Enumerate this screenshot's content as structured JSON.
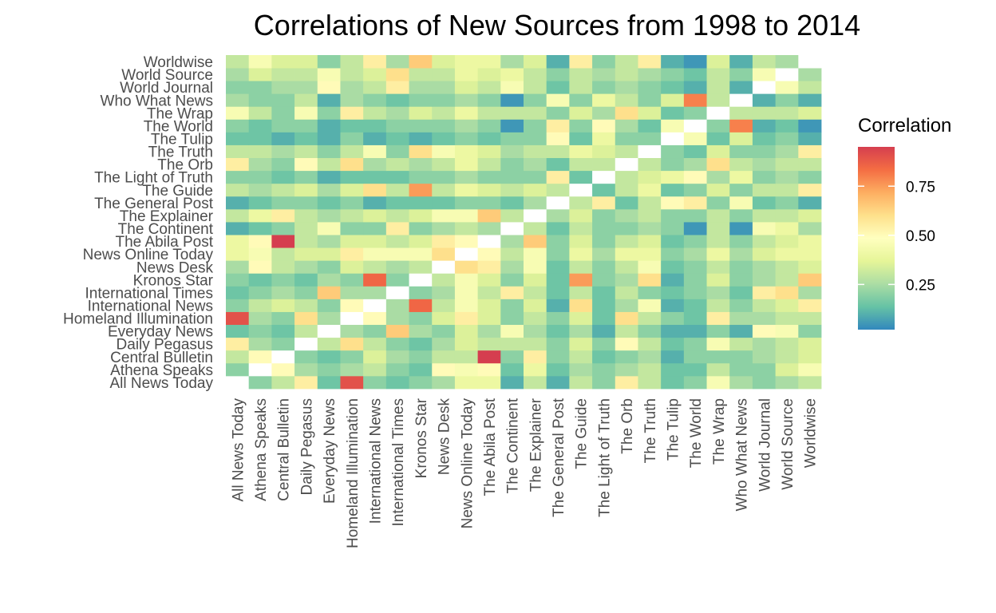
{
  "chart_data": {
    "type": "heatmap",
    "title": "Correlations of New Sources from 1998 to 2014",
    "xlabel": "",
    "ylabel": "",
    "categories": [
      "All News Today",
      "Athena Speaks",
      "Central Bulletin",
      "Daily Pegasus",
      "Everyday News",
      "Homeland Illumination",
      "International News",
      "International Times",
      "Kronos Star",
      "News Desk",
      "News Online Today",
      "The Abila Post",
      "The Continent",
      "The Explainer",
      "The General Post",
      "The Guide",
      "The Light of Truth",
      "The Orb",
      "The Truth",
      "The Tulip",
      "The World",
      "The Wrap",
      "Who What News",
      "World Journal",
      "World Source",
      "Worldwise"
    ],
    "values": [
      [
        1.0,
        0.2,
        0.3,
        0.55,
        0.15,
        0.9,
        0.2,
        0.15,
        0.2,
        0.25,
        0.4,
        0.4,
        0.1,
        0.3,
        0.1,
        0.3,
        0.2,
        0.55,
        0.3,
        0.15,
        0.2,
        0.45,
        0.25,
        0.2,
        0.25,
        0.3
      ],
      [
        0.2,
        1.0,
        0.5,
        0.25,
        0.2,
        0.25,
        0.3,
        0.2,
        0.15,
        0.5,
        0.45,
        0.5,
        0.15,
        0.4,
        0.15,
        0.25,
        0.2,
        0.25,
        0.3,
        0.15,
        0.15,
        0.3,
        0.2,
        0.2,
        0.35,
        0.45
      ],
      [
        0.3,
        0.5,
        1.0,
        0.2,
        0.15,
        0.2,
        0.35,
        0.25,
        0.2,
        0.3,
        0.3,
        0.95,
        0.2,
        0.55,
        0.2,
        0.3,
        0.15,
        0.2,
        0.25,
        0.1,
        0.2,
        0.2,
        0.2,
        0.25,
        0.3,
        0.35
      ],
      [
        0.55,
        0.25,
        0.2,
        1.0,
        0.3,
        0.6,
        0.3,
        0.2,
        0.15,
        0.25,
        0.35,
        0.3,
        0.3,
        0.3,
        0.2,
        0.35,
        0.2,
        0.5,
        0.3,
        0.15,
        0.2,
        0.45,
        0.3,
        0.25,
        0.3,
        0.35
      ],
      [
        0.15,
        0.2,
        0.15,
        0.3,
        1.0,
        0.25,
        0.2,
        0.65,
        0.25,
        0.2,
        0.35,
        0.25,
        0.45,
        0.25,
        0.15,
        0.25,
        0.1,
        0.3,
        0.2,
        0.1,
        0.1,
        0.2,
        0.1,
        0.5,
        0.45,
        0.2
      ],
      [
        0.9,
        0.25,
        0.2,
        0.6,
        0.25,
        1.0,
        0.5,
        0.25,
        0.2,
        0.35,
        0.55,
        0.35,
        0.2,
        0.3,
        0.2,
        0.35,
        0.15,
        0.6,
        0.3,
        0.2,
        0.15,
        0.55,
        0.25,
        0.25,
        0.3,
        0.3
      ],
      [
        0.2,
        0.3,
        0.35,
        0.3,
        0.2,
        0.5,
        1.0,
        0.25,
        0.85,
        0.3,
        0.45,
        0.35,
        0.2,
        0.35,
        0.1,
        0.6,
        0.15,
        0.25,
        0.45,
        0.1,
        0.15,
        0.3,
        0.2,
        0.3,
        0.35,
        0.55
      ],
      [
        0.15,
        0.2,
        0.25,
        0.2,
        0.65,
        0.25,
        0.25,
        1.0,
        0.2,
        0.25,
        0.45,
        0.3,
        0.55,
        0.3,
        0.15,
        0.3,
        0.15,
        0.3,
        0.2,
        0.15,
        0.2,
        0.25,
        0.15,
        0.55,
        0.6,
        0.25
      ],
      [
        0.2,
        0.15,
        0.2,
        0.15,
        0.25,
        0.2,
        0.85,
        0.2,
        1.0,
        0.3,
        0.45,
        0.35,
        0.2,
        0.35,
        0.15,
        0.75,
        0.2,
        0.25,
        0.6,
        0.1,
        0.2,
        0.35,
        0.2,
        0.25,
        0.3,
        0.65
      ],
      [
        0.25,
        0.5,
        0.3,
        0.25,
        0.2,
        0.35,
        0.3,
        0.25,
        0.3,
        1.0,
        0.6,
        0.55,
        0.25,
        0.45,
        0.15,
        0.3,
        0.2,
        0.3,
        0.45,
        0.15,
        0.2,
        0.3,
        0.2,
        0.25,
        0.3,
        0.35
      ],
      [
        0.4,
        0.45,
        0.3,
        0.35,
        0.35,
        0.55,
        0.45,
        0.45,
        0.45,
        0.6,
        1.0,
        0.5,
        0.3,
        0.45,
        0.2,
        0.4,
        0.25,
        0.4,
        0.4,
        0.2,
        0.25,
        0.4,
        0.25,
        0.35,
        0.4,
        0.4
      ],
      [
        0.4,
        0.5,
        0.95,
        0.3,
        0.25,
        0.35,
        0.35,
        0.3,
        0.35,
        0.55,
        0.5,
        1.0,
        0.25,
        0.65,
        0.2,
        0.35,
        0.2,
        0.3,
        0.35,
        0.15,
        0.2,
        0.3,
        0.2,
        0.3,
        0.35,
        0.4
      ],
      [
        0.1,
        0.15,
        0.2,
        0.3,
        0.45,
        0.2,
        0.2,
        0.55,
        0.2,
        0.25,
        0.3,
        0.25,
        1.0,
        0.3,
        0.15,
        0.3,
        0.2,
        0.2,
        0.25,
        0.2,
        0.05,
        0.3,
        0.05,
        0.45,
        0.4,
        0.25
      ],
      [
        0.3,
        0.4,
        0.55,
        0.3,
        0.25,
        0.3,
        0.35,
        0.3,
        0.35,
        0.45,
        0.45,
        0.65,
        0.3,
        1.0,
        0.25,
        0.35,
        0.2,
        0.25,
        0.3,
        0.2,
        0.2,
        0.3,
        0.2,
        0.3,
        0.3,
        0.35
      ],
      [
        0.1,
        0.15,
        0.2,
        0.2,
        0.15,
        0.2,
        0.1,
        0.15,
        0.15,
        0.15,
        0.2,
        0.2,
        0.15,
        0.25,
        1.0,
        0.3,
        0.55,
        0.15,
        0.3,
        0.5,
        0.55,
        0.2,
        0.45,
        0.15,
        0.2,
        0.1
      ],
      [
        0.3,
        0.25,
        0.3,
        0.35,
        0.25,
        0.35,
        0.6,
        0.3,
        0.75,
        0.3,
        0.4,
        0.35,
        0.3,
        0.35,
        0.3,
        1.0,
        0.15,
        0.3,
        0.4,
        0.15,
        0.2,
        0.35,
        0.2,
        0.3,
        0.3,
        0.55
      ],
      [
        0.2,
        0.2,
        0.15,
        0.2,
        0.1,
        0.15,
        0.15,
        0.15,
        0.2,
        0.2,
        0.25,
        0.2,
        0.2,
        0.2,
        0.55,
        0.15,
        1.0,
        0.3,
        0.35,
        0.4,
        0.5,
        0.25,
        0.4,
        0.2,
        0.25,
        0.2
      ],
      [
        0.55,
        0.25,
        0.2,
        0.5,
        0.3,
        0.6,
        0.25,
        0.3,
        0.25,
        0.3,
        0.4,
        0.3,
        0.2,
        0.25,
        0.15,
        0.3,
        0.3,
        1.0,
        0.3,
        0.2,
        0.25,
        0.6,
        0.3,
        0.25,
        0.3,
        0.3
      ],
      [
        0.3,
        0.3,
        0.25,
        0.3,
        0.2,
        0.3,
        0.45,
        0.2,
        0.6,
        0.45,
        0.4,
        0.35,
        0.25,
        0.3,
        0.3,
        0.4,
        0.35,
        0.3,
        1.0,
        0.2,
        0.15,
        0.35,
        0.2,
        0.2,
        0.25,
        0.55
      ],
      [
        0.15,
        0.15,
        0.1,
        0.15,
        0.1,
        0.2,
        0.1,
        0.15,
        0.1,
        0.15,
        0.2,
        0.15,
        0.2,
        0.2,
        0.5,
        0.15,
        0.4,
        0.2,
        0.2,
        1.0,
        0.45,
        0.15,
        0.35,
        0.15,
        0.2,
        0.1
      ],
      [
        0.2,
        0.15,
        0.2,
        0.2,
        0.1,
        0.15,
        0.15,
        0.2,
        0.2,
        0.2,
        0.25,
        0.2,
        0.05,
        0.2,
        0.55,
        0.2,
        0.5,
        0.25,
        0.15,
        0.45,
        1.0,
        0.2,
        0.8,
        0.1,
        0.15,
        0.05
      ],
      [
        0.45,
        0.3,
        0.2,
        0.45,
        0.2,
        0.55,
        0.3,
        0.25,
        0.35,
        0.3,
        0.4,
        0.3,
        0.3,
        0.3,
        0.2,
        0.35,
        0.25,
        0.6,
        0.35,
        0.15,
        0.2,
        1.0,
        0.3,
        0.3,
        0.3,
        0.35
      ],
      [
        0.25,
        0.2,
        0.2,
        0.3,
        0.1,
        0.25,
        0.2,
        0.15,
        0.2,
        0.2,
        0.25,
        0.2,
        0.05,
        0.2,
        0.45,
        0.2,
        0.4,
        0.3,
        0.2,
        0.35,
        0.8,
        0.3,
        1.0,
        0.1,
        0.2,
        0.1
      ],
      [
        0.2,
        0.2,
        0.25,
        0.25,
        0.5,
        0.25,
        0.3,
        0.55,
        0.25,
        0.25,
        0.35,
        0.3,
        0.45,
        0.3,
        0.15,
        0.3,
        0.2,
        0.25,
        0.2,
        0.15,
        0.1,
        0.3,
        0.1,
        1.0,
        0.45,
        0.3
      ],
      [
        0.25,
        0.35,
        0.3,
        0.3,
        0.45,
        0.3,
        0.35,
        0.6,
        0.3,
        0.3,
        0.4,
        0.35,
        0.4,
        0.3,
        0.2,
        0.3,
        0.25,
        0.3,
        0.25,
        0.2,
        0.15,
        0.3,
        0.2,
        0.45,
        1.0,
        0.25
      ],
      [
        0.3,
        0.45,
        0.35,
        0.35,
        0.2,
        0.3,
        0.55,
        0.25,
        0.65,
        0.35,
        0.4,
        0.4,
        0.25,
        0.35,
        0.1,
        0.55,
        0.2,
        0.3,
        0.55,
        0.1,
        0.05,
        0.35,
        0.1,
        0.3,
        0.25,
        1.0
      ]
    ],
    "color_scale": {
      "name": "Correlation",
      "breaks": [
        0.25,
        0.5,
        0.75
      ],
      "range": [
        0.02,
        0.95
      ],
      "colors": [
        "#3288bd",
        "#66c2a5",
        "#abdda4",
        "#e6f598",
        "#ffffbf",
        "#fee08b",
        "#fdae61",
        "#f46d43",
        "#d53e4f"
      ],
      "diagonal_color": "#ffffff"
    },
    "grid": false,
    "legend_position": "right"
  }
}
